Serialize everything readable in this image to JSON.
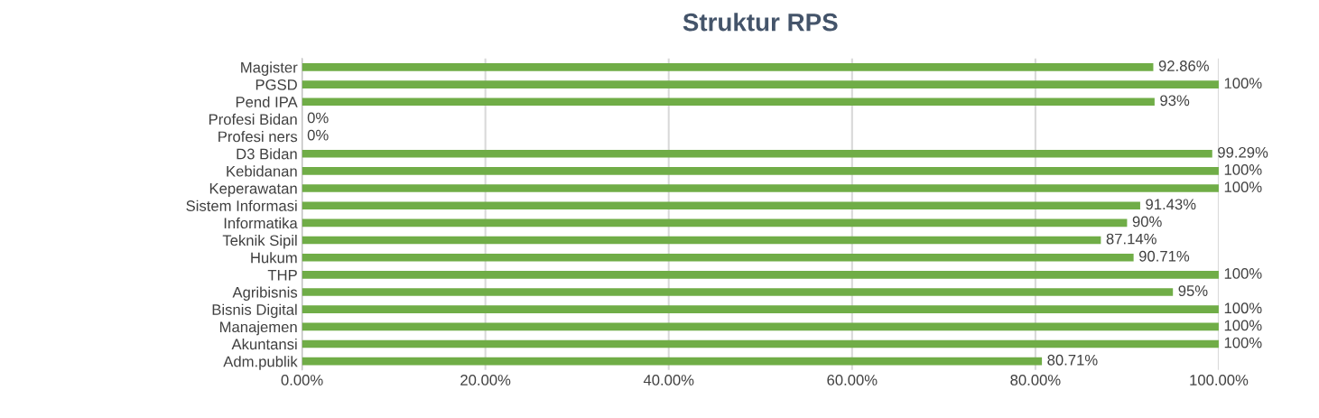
{
  "chart_data": {
    "type": "bar",
    "title": "Struktur RPS",
    "orientation": "horizontal",
    "categories": [
      "Magister",
      "PGSD",
      "Pend IPA",
      "Profesi Bidan",
      "Profesi ners",
      "D3 Bidan",
      "Kebidanan",
      "Keperawatan",
      "Sistem Informasi",
      "Informatika",
      "Teknik Sipil",
      "Hukum",
      "THP",
      "Agribisnis",
      "Bisnis Digital",
      "Manajemen",
      "Akuntansi",
      "Adm.publik"
    ],
    "values": [
      92.86,
      100,
      93,
      0,
      0,
      99.29,
      100,
      100,
      91.43,
      90,
      87.14,
      90.71,
      100,
      95,
      100,
      100,
      100,
      80.71
    ],
    "value_labels": [
      "92.86%",
      "100%",
      "93%",
      "0%",
      "0%",
      "99.29%",
      "100%",
      "100%",
      "91.43%",
      "90%",
      "87.14%",
      "90.71%",
      "100%",
      "95%",
      "100%",
      "100%",
      "100%",
      "80.71%"
    ],
    "color": "#70ad47",
    "xlim": [
      0,
      100
    ],
    "xticks": [
      {
        "value": 0,
        "label": "0.00%"
      },
      {
        "value": 20,
        "label": "20.00%"
      },
      {
        "value": 40,
        "label": "40.00%"
      },
      {
        "value": 60,
        "label": "60.00%"
      },
      {
        "value": 80,
        "label": "80.00%"
      },
      {
        "value": 100,
        "label": "100.00%"
      }
    ],
    "grid": "x",
    "legend": false
  }
}
